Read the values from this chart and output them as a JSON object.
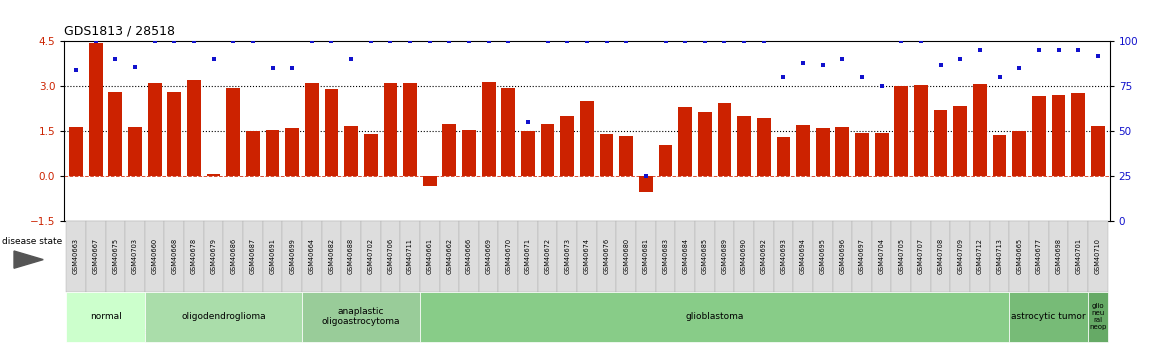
{
  "title": "GDS1813 / 28518",
  "samples": [
    "GSM40663",
    "GSM40667",
    "GSM40675",
    "GSM40703",
    "GSM40660",
    "GSM40668",
    "GSM40678",
    "GSM40679",
    "GSM40686",
    "GSM40687",
    "GSM40691",
    "GSM40699",
    "GSM40664",
    "GSM40682",
    "GSM40688",
    "GSM40702",
    "GSM40706",
    "GSM40711",
    "GSM40661",
    "GSM40662",
    "GSM40666",
    "GSM40669",
    "GSM40670",
    "GSM40671",
    "GSM40672",
    "GSM40673",
    "GSM40674",
    "GSM40676",
    "GSM40680",
    "GSM40681",
    "GSM40683",
    "GSM40684",
    "GSM40685",
    "GSM40689",
    "GSM40690",
    "GSM40692",
    "GSM40693",
    "GSM40694",
    "GSM40695",
    "GSM40696",
    "GSM40697",
    "GSM40704",
    "GSM40705",
    "GSM40707",
    "GSM40708",
    "GSM40709",
    "GSM40712",
    "GSM40713",
    "GSM40665",
    "GSM40677",
    "GSM40698",
    "GSM40701",
    "GSM40710"
  ],
  "log2_ratio": [
    1.65,
    4.45,
    2.82,
    1.65,
    3.12,
    2.82,
    3.22,
    0.05,
    2.95,
    1.52,
    1.55,
    1.6,
    3.1,
    2.92,
    1.68,
    1.4,
    3.12,
    3.12,
    -0.35,
    1.75,
    1.55,
    3.15,
    2.93,
    1.5,
    1.75,
    2.0,
    2.5,
    1.4,
    1.32,
    -0.55,
    1.02,
    2.3,
    2.15,
    2.45,
    2.0,
    1.95,
    1.3,
    1.72,
    1.62,
    1.65,
    1.45,
    1.42,
    3.0,
    3.05,
    2.2,
    2.35,
    3.08,
    1.38,
    1.5,
    2.68,
    2.72,
    2.78,
    1.68
  ],
  "percentile_rank": [
    84,
    100,
    90,
    86,
    100,
    100,
    100,
    90,
    100,
    100,
    85,
    85,
    100,
    100,
    90,
    100,
    100,
    100,
    100,
    100,
    100,
    100,
    100,
    55,
    100,
    100,
    100,
    100,
    100,
    25,
    100,
    100,
    100,
    100,
    100,
    100,
    80,
    88,
    87,
    90,
    80,
    75,
    100,
    100,
    87,
    90,
    95,
    80,
    85,
    95,
    95,
    95,
    92
  ],
  "disease_groups": [
    {
      "label": "normal",
      "start": 0,
      "end": 4,
      "color": "#ccffcc"
    },
    {
      "label": "oligodendroglioma",
      "start": 4,
      "end": 12,
      "color": "#aaddaa"
    },
    {
      "label": "anaplastic\noligoastrocytoma",
      "start": 12,
      "end": 18,
      "color": "#99cc99"
    },
    {
      "label": "glioblastoma",
      "start": 18,
      "end": 48,
      "color": "#88cc88"
    },
    {
      "label": "astrocytic tumor",
      "start": 48,
      "end": 52,
      "color": "#77bb77"
    },
    {
      "label": "glio\nneu\nral\nneop",
      "start": 52,
      "end": 53,
      "color": "#66aa66"
    }
  ],
  "ylim_left": [
    -1.5,
    4.5
  ],
  "ylim_right": [
    0,
    100
  ],
  "yticks_left": [
    -1.5,
    0,
    1.5,
    3,
    4.5
  ],
  "yticks_right": [
    0,
    25,
    50,
    75,
    100
  ],
  "bar_color": "#cc2200",
  "dot_color": "#1111cc",
  "bg_color": "white"
}
